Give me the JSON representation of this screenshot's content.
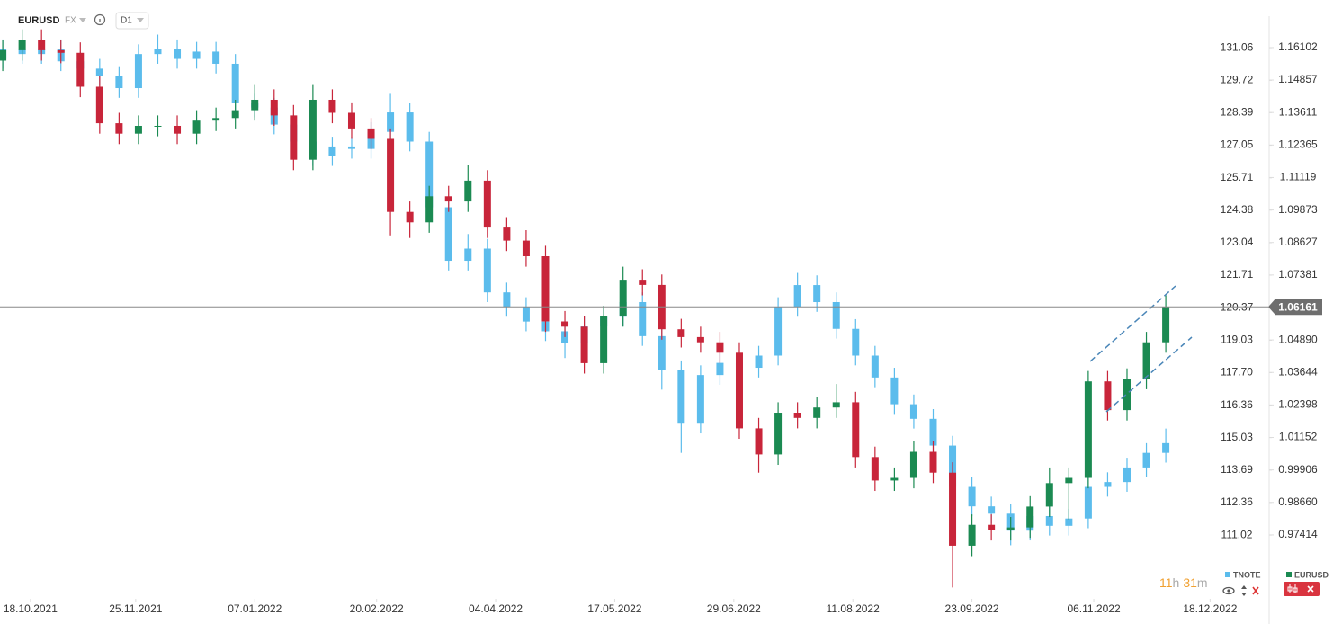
{
  "header": {
    "symbol": "EURUSD",
    "market": "FX",
    "interval": "D1"
  },
  "timer": {
    "hours": 11,
    "hours_unit": "h",
    "minutes": 31,
    "minutes_unit": "m"
  },
  "chart_data": {
    "type": "candlestick",
    "x": [
      "08.10.2021",
      "15.10.2021",
      "22.10.2021",
      "29.10.2021",
      "05.11.2021",
      "12.11.2021",
      "19.11.2021",
      "26.11.2021",
      "03.12.2021",
      "10.12.2021",
      "17.12.2021",
      "24.12.2021",
      "31.12.2021",
      "07.01.2022",
      "14.01.2022",
      "21.01.2022",
      "28.01.2022",
      "04.02.2022",
      "11.02.2022",
      "18.02.2022",
      "25.02.2022",
      "04.03.2022",
      "11.03.2022",
      "18.03.2022",
      "25.03.2022",
      "01.04.2022",
      "08.04.2022",
      "15.04.2022",
      "22.04.2022",
      "29.04.2022",
      "06.05.2022",
      "13.05.2022",
      "20.05.2022",
      "27.05.2022",
      "03.06.2022",
      "10.06.2022",
      "17.06.2022",
      "24.06.2022",
      "01.07.2022",
      "08.07.2022",
      "15.07.2022",
      "22.07.2022",
      "29.07.2022",
      "05.08.2022",
      "12.08.2022",
      "19.08.2022",
      "26.08.2022",
      "02.09.2022",
      "09.09.2022",
      "16.09.2022",
      "23.09.2022",
      "30.09.2022",
      "07.10.2022",
      "14.10.2022",
      "21.10.2022",
      "28.10.2022",
      "04.11.2022",
      "11.11.2022",
      "18.11.2022",
      "25.11.2022",
      "02.12.2022"
    ],
    "xlim": [
      "07.10.2021",
      "08.01.2023"
    ],
    "xticks": [
      "18.10.2021",
      "25.11.2021",
      "07.01.2022",
      "20.02.2022",
      "04.04.2022",
      "17.05.2022",
      "29.06.2022",
      "11.08.2022",
      "23.09.2022",
      "06.11.2022",
      "18.12.2022"
    ],
    "ylim": [
      0.9517,
      1.1672
    ],
    "yticks": [
      1.16102,
      1.14857,
      1.13611,
      1.12365,
      1.11119,
      1.09873,
      1.08627,
      1.07381,
      {
        "value": 1.0489,
        "label": "1.04890"
      },
      1.03644,
      1.02398,
      1.01152,
      0.99906,
      {
        "value": 0.9866,
        "label": "0.98660"
      },
      0.97414
    ],
    "y2lim": [
      108.62,
      131.73
    ],
    "y2ticks": [
      131.06,
      129.72,
      128.39,
      127.05,
      125.71,
      124.38,
      123.04,
      121.71,
      120.37,
      119.03,
      {
        "value": 117.7,
        "label": "117.70"
      },
      116.36,
      115.03,
      113.69,
      112.36,
      111.02
    ],
    "last_price": 1.06161,
    "series": [
      {
        "name": "TNOTE",
        "color": "#5bbcec",
        "axis": "y2",
        "open": [
          130.6,
          131.0,
          130.8,
          131.0,
          130.5,
          130.2,
          129.9,
          129.4,
          130.8,
          131.0,
          130.6,
          130.9,
          130.4,
          128.8,
          128.6,
          127.9,
          127.2,
          126.6,
          127.0,
          126.9,
          127.6,
          128.4,
          127.2,
          124.5,
          122.3,
          122.8,
          121.0,
          120.4,
          119.8,
          119.4,
          118.9,
          119.6,
          120.0,
          120.6,
          119.2,
          117.8,
          115.6,
          117.6,
          118.1,
          117.9,
          118.4,
          120.4,
          121.3,
          120.6,
          119.5,
          118.4,
          117.5,
          116.4,
          115.8,
          114.7,
          113.0,
          112.2,
          111.9,
          111.2,
          111.8,
          111.4,
          111.7,
          113.0,
          113.2,
          113.8,
          114.4
        ],
        "high": [
          131.4,
          131.4,
          131.4,
          131.4,
          130.9,
          130.6,
          130.3,
          131.2,
          131.6,
          131.4,
          131.3,
          131.3,
          130.8,
          129.2,
          129.0,
          128.3,
          127.6,
          127.4,
          127.4,
          128.0,
          129.2,
          128.8,
          127.6,
          124.9,
          123.4,
          123.2,
          121.4,
          120.8,
          120.2,
          119.8,
          120.0,
          120.4,
          121.0,
          121.0,
          119.6,
          118.2,
          118.0,
          118.8,
          118.5,
          118.8,
          120.8,
          121.8,
          121.7,
          121.0,
          119.9,
          118.8,
          117.9,
          116.8,
          116.2,
          115.1,
          113.4,
          112.6,
          112.3,
          112.2,
          112.2,
          112.1,
          113.4,
          113.6,
          114.2,
          114.8,
          115.4
        ],
        "low": [
          130.2,
          130.4,
          130.4,
          130.1,
          129.8,
          129.5,
          129.0,
          129.0,
          130.4,
          130.2,
          130.2,
          130.0,
          128.4,
          128.2,
          127.5,
          126.8,
          126.2,
          126.2,
          126.5,
          126.5,
          127.2,
          126.8,
          124.1,
          121.9,
          121.9,
          120.6,
          120.0,
          119.4,
          119.0,
          118.3,
          118.5,
          119.2,
          119.6,
          118.8,
          117.0,
          114.4,
          115.2,
          117.2,
          117.5,
          117.5,
          118.0,
          120.0,
          120.2,
          119.1,
          118.0,
          117.1,
          116.0,
          115.4,
          114.3,
          112.6,
          111.8,
          111.5,
          110.6,
          110.8,
          111.0,
          111.0,
          111.3,
          112.6,
          112.8,
          113.4,
          114.0
        ],
        "close": [
          131.0,
          130.8,
          131.0,
          130.5,
          130.2,
          129.9,
          129.4,
          130.8,
          131.0,
          130.6,
          130.9,
          130.4,
          128.8,
          128.6,
          127.9,
          127.2,
          126.6,
          127.0,
          126.9,
          127.6,
          128.4,
          127.2,
          124.5,
          122.3,
          122.8,
          121.0,
          120.4,
          119.8,
          119.4,
          118.9,
          119.6,
          120.0,
          120.6,
          119.2,
          117.8,
          115.6,
          117.6,
          118.1,
          117.9,
          118.4,
          120.4,
          121.3,
          120.6,
          119.5,
          118.4,
          117.5,
          116.4,
          115.8,
          114.7,
          113.0,
          112.2,
          111.9,
          111.2,
          111.8,
          111.4,
          111.7,
          113.0,
          113.2,
          113.8,
          114.4,
          114.8
        ]
      },
      {
        "name": "EURUSD",
        "color": "#1b8a52",
        "down_color": "#c8253a",
        "open": [
          1.156,
          1.16,
          1.164,
          1.16,
          1.159,
          1.146,
          1.132,
          1.128,
          1.131,
          1.131,
          1.128,
          1.133,
          1.134,
          1.137,
          1.141,
          1.135,
          1.118,
          1.141,
          1.136,
          1.13,
          1.126,
          1.098,
          1.094,
          1.104,
          1.102,
          1.11,
          1.092,
          1.087,
          1.081,
          1.056,
          1.054,
          1.04,
          1.058,
          1.072,
          1.07,
          1.053,
          1.05,
          1.048,
          1.044,
          1.015,
          1.005,
          1.021,
          1.019,
          1.023,
          1.025,
          1.004,
          0.995,
          0.996,
          1.006,
          0.998,
          0.97,
          0.978,
          0.976,
          0.977,
          0.985,
          0.994,
          0.996,
          1.033,
          1.022,
          1.034,
          1.048
        ],
        "high": [
          1.164,
          1.168,
          1.168,
          1.164,
          1.163,
          1.15,
          1.136,
          1.135,
          1.135,
          1.135,
          1.137,
          1.138,
          1.141,
          1.147,
          1.145,
          1.139,
          1.147,
          1.145,
          1.14,
          1.134,
          1.13,
          1.102,
          1.108,
          1.108,
          1.116,
          1.114,
          1.096,
          1.091,
          1.085,
          1.06,
          1.058,
          1.062,
          1.077,
          1.076,
          1.074,
          1.057,
          1.054,
          1.052,
          1.048,
          1.019,
          1.025,
          1.025,
          1.027,
          1.032,
          1.029,
          1.008,
          1.0,
          1.01,
          1.01,
          1.002,
          0.982,
          0.982,
          0.981,
          0.989,
          1.0,
          1.0,
          1.037,
          1.037,
          1.038,
          1.052,
          1.066
        ],
        "low": [
          1.152,
          1.156,
          1.156,
          1.155,
          1.142,
          1.128,
          1.124,
          1.124,
          1.127,
          1.124,
          1.124,
          1.129,
          1.13,
          1.133,
          1.131,
          1.114,
          1.114,
          1.132,
          1.126,
          1.122,
          1.089,
          1.088,
          1.09,
          1.098,
          1.098,
          1.088,
          1.083,
          1.077,
          1.052,
          1.05,
          1.036,
          1.036,
          1.054,
          1.066,
          1.049,
          1.046,
          1.044,
          1.04,
          1.011,
          0.998,
          1.001,
          1.015,
          1.015,
          1.019,
          1.0,
          0.991,
          0.991,
          0.992,
          0.994,
          0.954,
          0.966,
          0.972,
          0.972,
          0.973,
          0.981,
          0.98,
          0.992,
          1.018,
          1.018,
          1.03,
          1.044
        ],
        "close": [
          1.16,
          1.164,
          1.16,
          1.159,
          1.146,
          1.132,
          1.128,
          1.131,
          1.131,
          1.128,
          1.133,
          1.134,
          1.137,
          1.141,
          1.135,
          1.118,
          1.141,
          1.136,
          1.13,
          1.126,
          1.098,
          1.094,
          1.104,
          1.102,
          1.11,
          1.092,
          1.087,
          1.081,
          1.056,
          1.054,
          1.04,
          1.058,
          1.072,
          1.07,
          1.053,
          1.05,
          1.048,
          1.044,
          1.015,
          1.005,
          1.021,
          1.019,
          1.023,
          1.025,
          1.004,
          0.995,
          0.996,
          1.006,
          0.998,
          0.97,
          0.978,
          0.976,
          0.977,
          0.985,
          0.994,
          0.996,
          1.033,
          1.022,
          1.034,
          1.048,
          1.06161
        ]
      }
    ]
  }
}
